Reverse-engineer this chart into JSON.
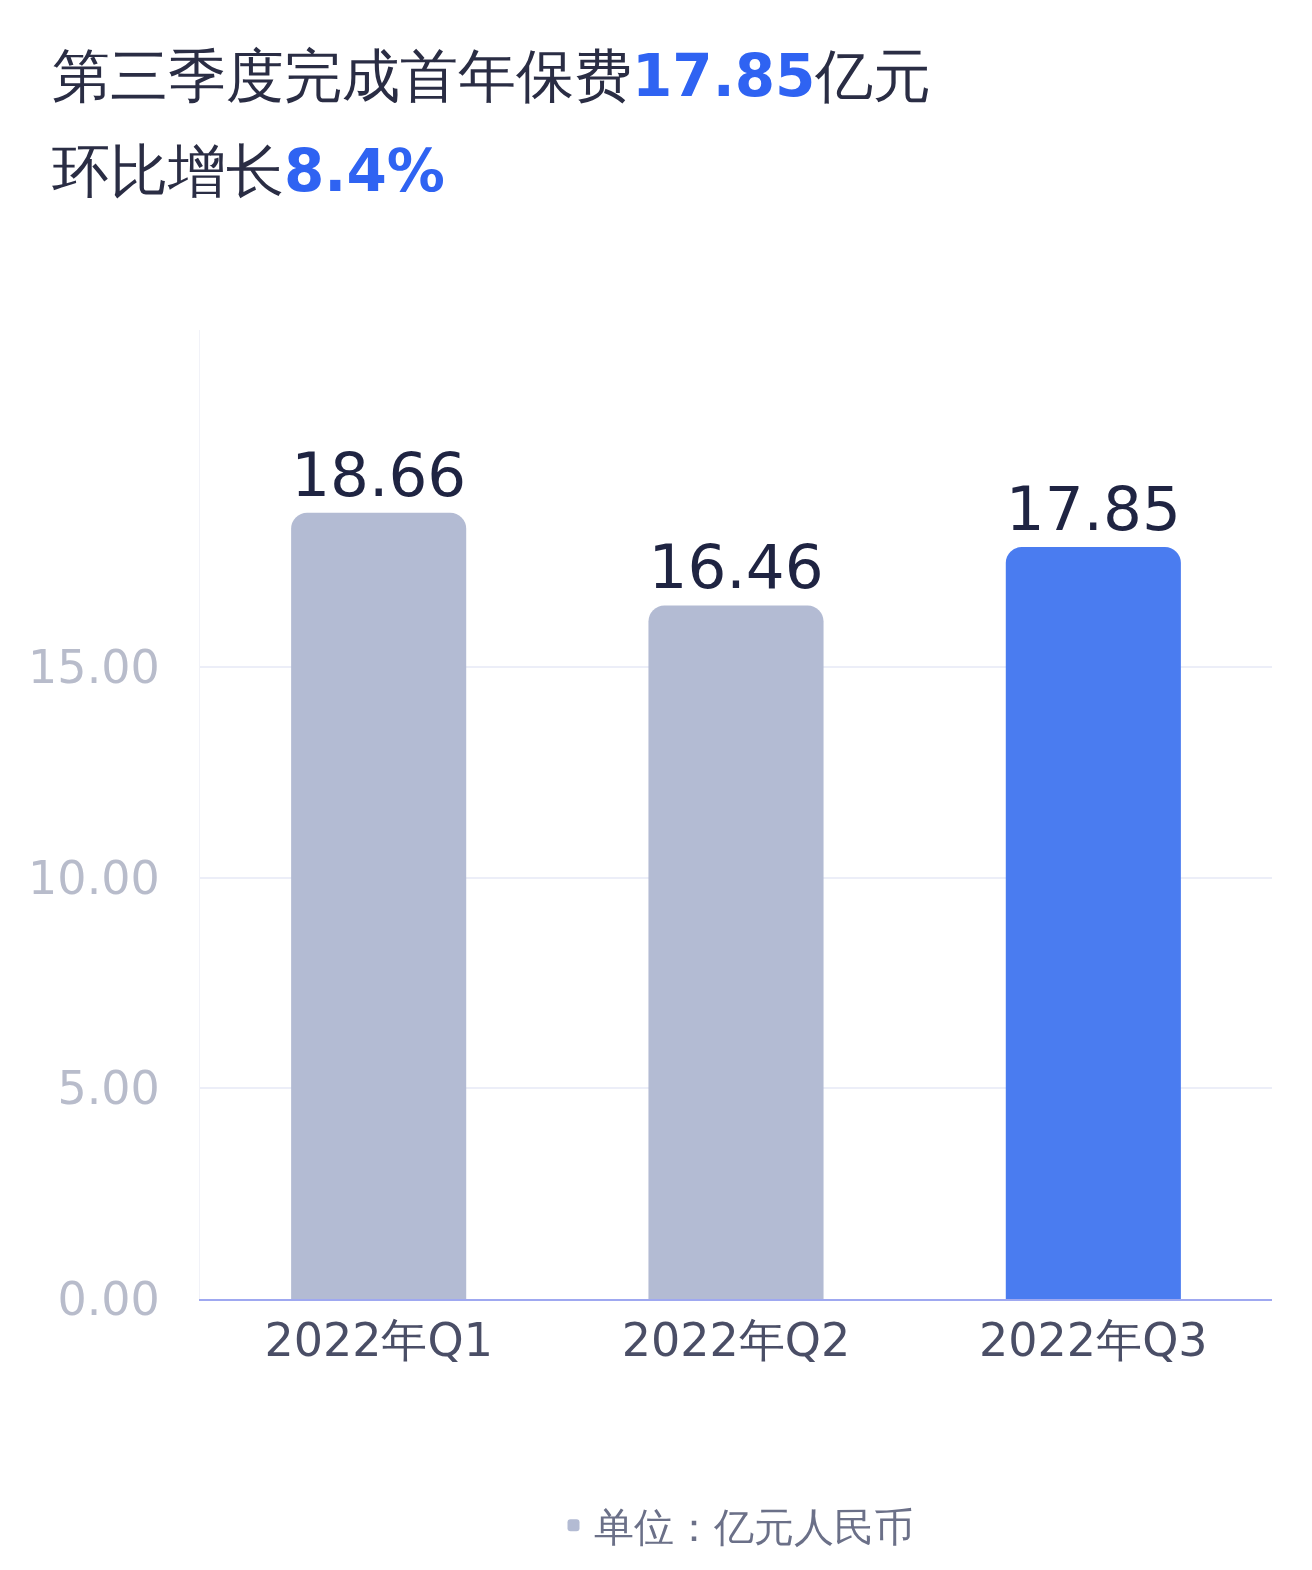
{
  "chart_data": {
    "type": "bar",
    "title": "第三季度完成首年保费17.85亿元",
    "subtitle": "环比增长8.4%",
    "categories": [
      "2022年Q1",
      "2022年Q2",
      "2022年Q3"
    ],
    "series": [
      {
        "name": "单位：亿元人民币",
        "colors": [
          "#b3bbd3",
          "#b3bbd3",
          "#4a7cf0"
        ],
        "values": [
          18.66,
          16.46,
          17.85
        ]
      }
    ],
    "ylim": [
      0,
      23
    ],
    "yticks": [
      {
        "value": 0,
        "label": "0.00"
      },
      {
        "value": 5,
        "label": "5.00"
      },
      {
        "value": 10,
        "label": "10.00"
      },
      {
        "value": 15,
        "label": "15.00"
      }
    ],
    "grid": "y",
    "legend": "bottom",
    "data_labels": true
  }
}
